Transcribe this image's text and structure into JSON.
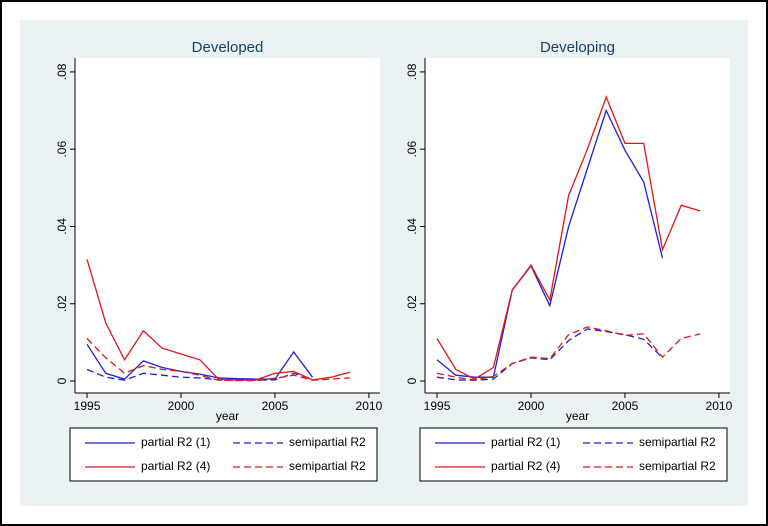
{
  "chart_data": [
    {
      "type": "line",
      "title": "Developed",
      "xlabel": "year",
      "x": [
        1995,
        1996,
        1997,
        1998,
        1999,
        2000,
        2001,
        2002,
        2003,
        2004,
        2005,
        2006,
        2007,
        2008,
        2009
      ],
      "series": [
        {
          "name": "partial R2 (1)",
          "color": "#1f1fd6",
          "linestyle": "solid",
          "values": [
            0.0095,
            0.002,
            0.0005,
            0.0052,
            0.0035,
            0.0025,
            0.0018,
            0.0008,
            0.0006,
            0.0005,
            0.0005,
            0.0075,
            0.001,
            null,
            null
          ]
        },
        {
          "name": "semipartial R2",
          "color": "#1f1fd6",
          "linestyle": "dashed",
          "values": [
            0.003,
            0.001,
            0.0002,
            0.002,
            0.0015,
            0.001,
            0.0008,
            0.0003,
            0.0002,
            0.0002,
            0.0003,
            0.002,
            0.0005,
            null,
            null
          ]
        },
        {
          "name": "partial R2 (4)",
          "color": "#e01818",
          "linestyle": "solid",
          "values": [
            0.0315,
            0.015,
            0.0055,
            0.013,
            0.0085,
            0.007,
            0.0055,
            0.0005,
            0.0003,
            0.0003,
            0.002,
            0.0025,
            0.0003,
            0.001,
            0.0023
          ]
        },
        {
          "name": "semipartial R2",
          "color": "#e01818",
          "linestyle": "dashed",
          "values": [
            0.011,
            0.006,
            0.002,
            0.004,
            0.003,
            0.0025,
            0.0015,
            0.0002,
            0.0001,
            0.0001,
            0.0007,
            0.0015,
            0.0002,
            0.0005,
            0.0008
          ]
        }
      ],
      "xlim": [
        1994.36,
        2010.59
      ],
      "ylim": [
        -0.0031,
        0.0836
      ],
      "xticks": [
        1995,
        2000,
        2005,
        2010
      ],
      "yticks": [
        0,
        {
          "value": 0.02,
          "label": ".02"
        },
        {
          "value": 0.04,
          "label": ".04"
        },
        {
          "value": 0.06,
          "label": ".06"
        },
        {
          "value": 0.08,
          "label": ".08"
        }
      ],
      "legend": "bottom"
    },
    {
      "type": "line",
      "title": "Developing",
      "xlabel": "year",
      "x": [
        1995,
        1996,
        1997,
        1998,
        1999,
        2000,
        2001,
        2002,
        2003,
        2004,
        2005,
        2006,
        2007,
        2008,
        2009
      ],
      "series": [
        {
          "name": "partial R2 (1)",
          "color": "#1f1fd6",
          "linestyle": "solid",
          "values": [
            0.0055,
            0.0015,
            0.001,
            0.001,
            0.0235,
            0.0298,
            0.0195,
            0.04,
            0.055,
            0.07,
            0.0597,
            0.0515,
            0.0318,
            null,
            null
          ]
        },
        {
          "name": "semipartial R2",
          "color": "#1f1fd6",
          "linestyle": "dashed",
          "values": [
            0.001,
            0.0003,
            0.0002,
            0.0005,
            0.0045,
            0.006,
            0.0055,
            0.0105,
            0.0135,
            0.0128,
            0.012,
            0.0108,
            0.006,
            null,
            null
          ]
        },
        {
          "name": "partial R2 (4)",
          "color": "#e01818",
          "linestyle": "solid",
          "values": [
            0.011,
            0.003,
            0.0005,
            0.0035,
            0.0235,
            0.03,
            0.021,
            0.048,
            0.06,
            0.0735,
            0.0615,
            0.0615,
            0.034,
            0.0455,
            0.044
          ]
        },
        {
          "name": "semipartial R2",
          "color": "#e01818",
          "linestyle": "dashed",
          "values": [
            0.002,
            0.001,
            0.0003,
            0.0012,
            0.0045,
            0.0062,
            0.0058,
            0.012,
            0.014,
            0.013,
            0.0118,
            0.0122,
            0.0062,
            0.011,
            0.0122
          ]
        }
      ],
      "xlim": [
        1994.36,
        2010.59
      ],
      "ylim": [
        -0.0031,
        0.0836
      ],
      "xticks": [
        1995,
        2000,
        2005,
        2010
      ],
      "yticks": [
        0,
        {
          "value": 0.02,
          "label": ".02"
        },
        {
          "value": 0.04,
          "label": ".04"
        },
        {
          "value": 0.06,
          "label": ".06"
        },
        {
          "value": 0.08,
          "label": ".08"
        }
      ],
      "legend": "bottom"
    }
  ]
}
